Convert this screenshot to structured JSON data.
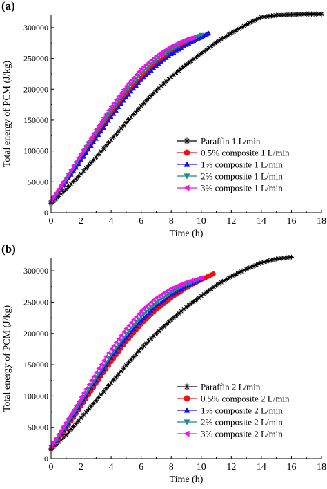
{
  "chart_data": [
    {
      "panel_label": "(a)",
      "type": "line",
      "xlabel": "Time (h)",
      "ylabel": "Total energy of PCM (J/kg)",
      "xlim": [
        0,
        18
      ],
      "ylim": [
        0,
        320000
      ],
      "xticks": [
        0,
        2,
        4,
        6,
        8,
        10,
        12,
        14,
        16,
        18
      ],
      "yticks": [
        0,
        50000,
        100000,
        150000,
        200000,
        250000,
        300000
      ],
      "legend_position": "lower-right",
      "grid": false,
      "series": [
        {
          "name": "Paraffin 1 L/min",
          "marker": "star",
          "color": "#000000",
          "x": [
            0,
            1,
            2,
            3,
            4,
            5,
            6,
            7,
            8,
            9,
            10,
            11,
            12,
            13,
            14,
            15,
            16,
            17,
            18
          ],
          "y": [
            15000,
            38000,
            63000,
            90000,
            118000,
            146000,
            173000,
            198000,
            220000,
            240000,
            258000,
            276000,
            291000,
            305000,
            317000,
            320000,
            321000,
            322000,
            322000
          ]
        },
        {
          "name": "0.5% composite 1 L/min",
          "marker": "circle",
          "color": "#ee1111",
          "x": [
            0,
            1,
            2,
            3,
            4,
            5,
            6,
            7,
            8,
            9,
            10
          ],
          "y": [
            18000,
            52000,
            88000,
            124000,
            159000,
            191000,
            218000,
            241000,
            259000,
            273000,
            284000
          ]
        },
        {
          "name": "1% composite 1 L/min",
          "marker": "triangle-up",
          "color": "#1111ee",
          "x": [
            0,
            1,
            2,
            3,
            4,
            5,
            6,
            7,
            8,
            9,
            10,
            10.5
          ],
          "y": [
            18000,
            50000,
            85000,
            120000,
            155000,
            187000,
            215000,
            238000,
            257000,
            272000,
            285000,
            291000
          ]
        },
        {
          "name": "2% composite 1 L/min",
          "marker": "triangle-down",
          "color": "#1a8a8a",
          "x": [
            0,
            1,
            2,
            3,
            4,
            5,
            6,
            7,
            8,
            9,
            10
          ],
          "y": [
            18000,
            54000,
            92000,
            130000,
            166000,
            199000,
            226000,
            248000,
            265000,
            278000,
            288000
          ]
        },
        {
          "name": "3% composite 1 L/min",
          "marker": "triangle-left",
          "color": "#ee11ee",
          "x": [
            0,
            1,
            2,
            3,
            4,
            5,
            6,
            7,
            8,
            9,
            9.5
          ],
          "y": [
            20000,
            57000,
            96000,
            135000,
            172000,
            205000,
            233000,
            254000,
            270000,
            281000,
            284000
          ]
        }
      ]
    },
    {
      "panel_label": "(b)",
      "type": "line",
      "xlabel": "Time (h)",
      "ylabel": "Total energy of PCM (J/kg)",
      "xlim": [
        0,
        18
      ],
      "ylim": [
        0,
        320000
      ],
      "xticks": [
        0,
        2,
        4,
        6,
        8,
        10,
        12,
        14,
        16,
        18
      ],
      "yticks": [
        0,
        50000,
        100000,
        150000,
        200000,
        250000,
        300000
      ],
      "legend_position": "lower-right",
      "grid": false,
      "series": [
        {
          "name": "Paraffin 2 L/min",
          "marker": "star",
          "color": "#000000",
          "x": [
            0,
            1,
            2,
            3,
            4,
            5,
            6,
            7,
            8,
            9,
            10,
            11,
            12,
            13,
            14,
            15,
            16
          ],
          "y": [
            15000,
            38000,
            65000,
            93000,
            121000,
            149000,
            176000,
            200000,
            222000,
            242000,
            260000,
            277000,
            291000,
            303000,
            313000,
            319000,
            322000
          ]
        },
        {
          "name": "0.5% composite 2 L/min",
          "marker": "circle",
          "color": "#ee1111",
          "x": [
            0,
            1,
            2,
            3,
            4,
            5,
            6,
            7,
            8,
            9,
            10,
            10.8
          ],
          "y": [
            16000,
            48000,
            84000,
            120000,
            155000,
            187000,
            215000,
            238000,
            257000,
            273000,
            286000,
            295000
          ]
        },
        {
          "name": "1% composite 2 L/min",
          "marker": "triangle-up",
          "color": "#1111ee",
          "x": [
            0,
            1,
            2,
            3,
            4,
            5,
            6,
            7,
            8,
            9,
            10
          ],
          "y": [
            17000,
            51000,
            88000,
            125000,
            161000,
            193000,
            221000,
            244000,
            262000,
            276000,
            287000
          ]
        },
        {
          "name": "2% composite 2 L/min",
          "marker": "triangle-down",
          "color": "#1a8a8a",
          "x": [
            0,
            1,
            2,
            3,
            4,
            5,
            6,
            7,
            8,
            9,
            10
          ],
          "y": [
            18000,
            54000,
            92000,
            130000,
            166000,
            199000,
            227000,
            249000,
            266000,
            278000,
            288000
          ]
        },
        {
          "name": "3% composite 2 L/min",
          "marker": "triangle-left",
          "color": "#ee11ee",
          "x": [
            0,
            1,
            2,
            3,
            4,
            5,
            6,
            7,
            8,
            9,
            10
          ],
          "y": [
            20000,
            58000,
            98000,
            138000,
            175000,
            208000,
            236000,
            257000,
            272000,
            282000,
            289000
          ]
        }
      ]
    }
  ]
}
